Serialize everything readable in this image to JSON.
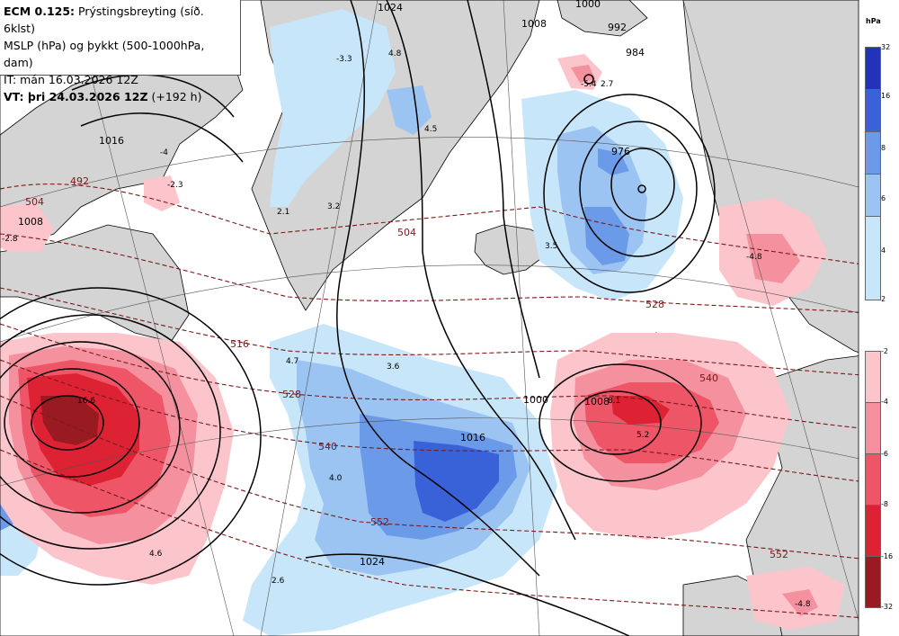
{
  "header": {
    "line1_bold": "ECM 0.125:",
    "line1_rest": "Prýstingsbreyting (síð. 6klst)",
    "line2": "MSLP (hPa) og þykkt (500-1000hPa, dam)",
    "line3": "IT: mán 16.03.2026 12Z",
    "line4_bold": "VT: þri 24.03.2026 12Z",
    "line4_rest": "(+192 h)"
  },
  "colorbar_unit": "hPa",
  "colorbar_positive": [
    {
      "label": "32",
      "color": "#2233b8"
    },
    {
      "label": "16",
      "color": "#3a62d8"
    },
    {
      "label": "8",
      "color": "#6a9ae8"
    },
    {
      "label": "6",
      "color": "#9cc4f2"
    },
    {
      "label": "4",
      "color": "#c8e6fa"
    },
    {
      "label": "2",
      "color": "#ffffff"
    }
  ],
  "colorbar_negative": [
    {
      "label": "-2",
      "color": "#fcc5cc"
    },
    {
      "label": "-4",
      "color": "#f5919e"
    },
    {
      "label": "-6",
      "color": "#ee5566"
    },
    {
      "label": "-8",
      "color": "#dd2233"
    },
    {
      "label": "-16",
      "color": "#9a1a22"
    },
    {
      "label": "-32",
      "color": "#ffffff"
    }
  ],
  "isobar_labels": [
    "1024",
    "1016",
    "1008",
    "1000",
    "992",
    "984",
    "976",
    "1024",
    "1016",
    "1008",
    "1000",
    "1008"
  ],
  "thickness_labels": [
    "492",
    "504",
    "504",
    "516",
    "528",
    "528",
    "540",
    "540",
    "552",
    "552"
  ],
  "point_values": [
    "-3.3",
    "4.8",
    "4.5",
    "-4",
    "-2.3",
    "2.1",
    "3.2",
    "-2.8",
    "-5.4",
    "2.7",
    "3.5",
    "4.7",
    "3.6",
    "16.6",
    "4.0",
    "4.6",
    "2.6",
    "-4.8",
    "8.1",
    "5.2",
    "-4.8"
  ],
  "map_colors": {
    "land": "#d4d4d4",
    "ocean": "#ffffff",
    "isobar": "#000000",
    "thickness": "#7a1a1a"
  }
}
